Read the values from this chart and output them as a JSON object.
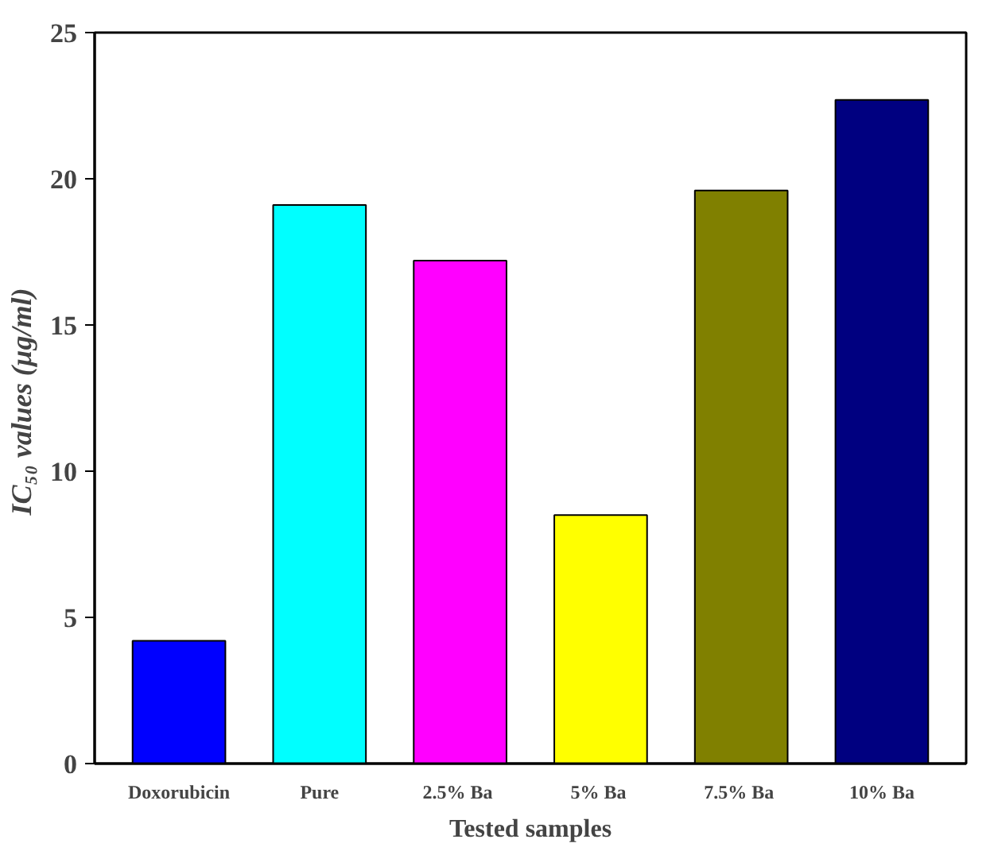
{
  "chart_data": {
    "type": "bar",
    "xlabel": "Tested samples",
    "ylabel": "IC₅₀ values  (µg/ml)",
    "categories": [
      "Doxorubicin",
      "Pure",
      "2.5%  Ba",
      "5%  Ba",
      "7.5%  Ba",
      "10% Ba"
    ],
    "values": [
      4.2,
      19.1,
      17.2,
      8.5,
      19.6,
      22.7
    ],
    "colors": [
      "#0000ff",
      "#00ffff",
      "#ff00ff",
      "#ffff00",
      "#808000",
      "#000080"
    ],
    "ylim": [
      0,
      25
    ],
    "yticks": [
      0,
      5,
      10,
      15,
      20,
      25
    ],
    "grid": false
  }
}
